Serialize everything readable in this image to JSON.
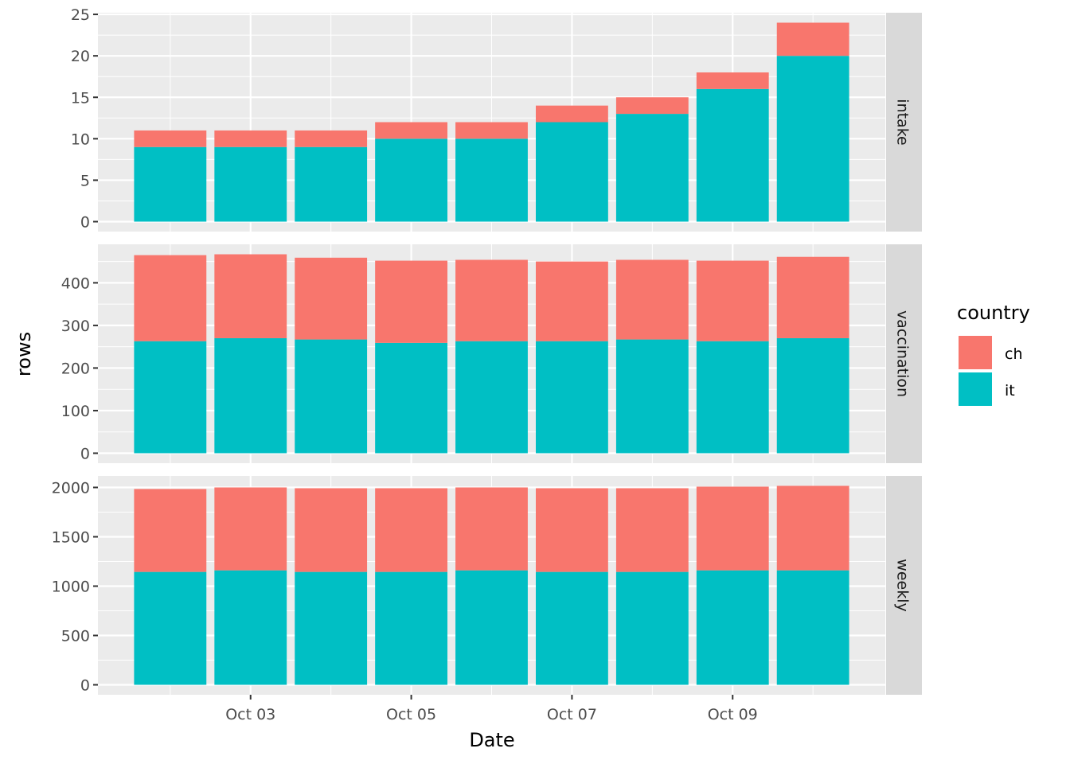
{
  "chart_data": {
    "type": "bar",
    "stacked": true,
    "xlabel": "Date",
    "ylabel": "rows",
    "categories": [
      "Oct 02",
      "Oct 03",
      "Oct 04",
      "Oct 05",
      "Oct 06",
      "Oct 07",
      "Oct 08",
      "Oct 09",
      "Oct 10"
    ],
    "x_tick_labels": [
      "Oct 03",
      "Oct 05",
      "Oct 07",
      "Oct 09"
    ],
    "legend": {
      "title": "country",
      "entries": [
        "ch",
        "it"
      ],
      "placement": "right"
    },
    "colors": {
      "ch": "#F8766D",
      "it": "#00BFC4"
    },
    "facets": [
      {
        "name": "intake",
        "yticks": [
          0,
          5,
          10,
          15,
          20,
          25
        ],
        "ylim": [
          -1.2,
          25.2
        ],
        "series": [
          {
            "name": "it",
            "values": [
              9,
              9,
              9,
              10,
              10,
              12,
              13,
              16,
              20
            ]
          },
          {
            "name": "ch",
            "values": [
              2,
              2,
              2,
              2,
              2,
              2,
              2,
              2,
              4
            ]
          }
        ]
      },
      {
        "name": "vaccination",
        "yticks": [
          0,
          100,
          200,
          300,
          400
        ],
        "ylim": [
          -23.4,
          490.4
        ],
        "series": [
          {
            "name": "it",
            "values": [
              263,
              270,
              267,
              259,
              263,
              263,
              267,
              263,
              270
            ]
          },
          {
            "name": "ch",
            "values": [
              202,
              197,
              192,
              193,
              191,
              187,
              187,
              189,
              191
            ]
          }
        ]
      },
      {
        "name": "weekly",
        "yticks": [
          0,
          500,
          1000,
          1500,
          2000
        ],
        "ylim": [
          -100.8,
          2116.8
        ],
        "series": [
          {
            "name": "it",
            "values": [
              1144,
              1160,
              1144,
              1144,
              1160,
              1144,
              1144,
              1160,
              1160
            ]
          },
          {
            "name": "ch",
            "values": [
              840,
              840,
              848,
              848,
              840,
              848,
              848,
              848,
              856
            ]
          }
        ]
      }
    ]
  }
}
